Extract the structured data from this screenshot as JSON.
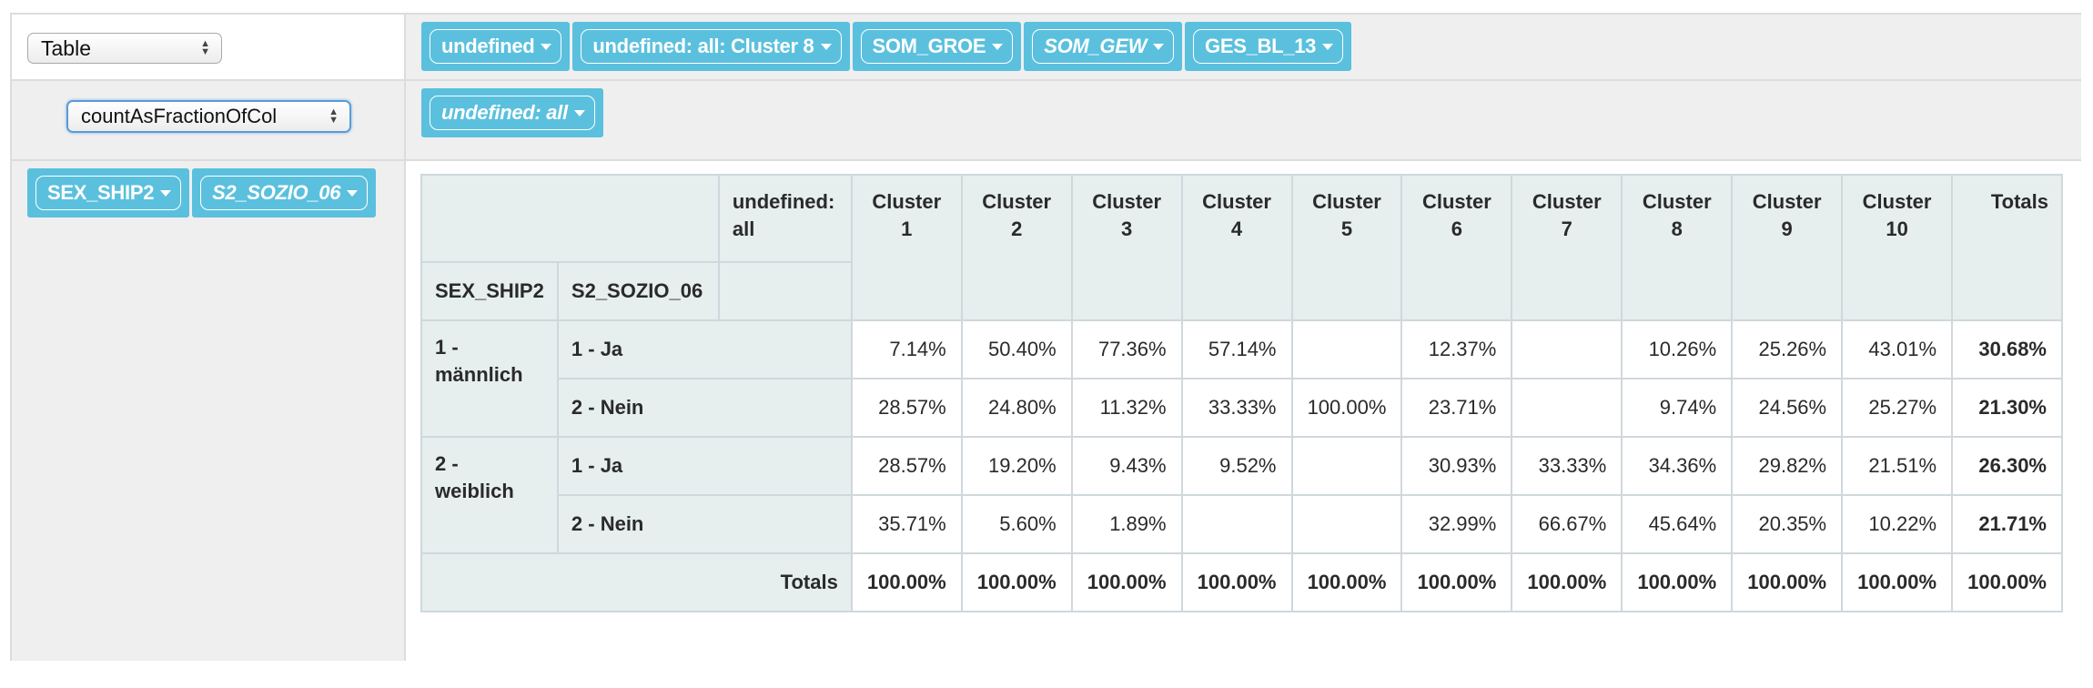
{
  "renderer": {
    "selected": "Table"
  },
  "aggregator": {
    "selected": "countAsFractionOfCol"
  },
  "unused_attributes": [
    {
      "label": "undefined",
      "italic": false
    },
    {
      "label": "undefined: all: Cluster 8",
      "italic": false
    },
    {
      "label": "SOM_GROE",
      "italic": false
    },
    {
      "label": "SOM_GEW",
      "italic": true
    },
    {
      "label": "GES_BL_13",
      "italic": false
    }
  ],
  "column_attributes": [
    {
      "label": "undefined: all",
      "italic": true
    }
  ],
  "row_attributes": [
    {
      "label": "SEX_SHIP2",
      "italic": false
    },
    {
      "label": "S2_SOZIO_06",
      "italic": true
    }
  ],
  "table": {
    "col_attr_header": "undefined: all",
    "row_attr_headers": [
      "SEX_SHIP2",
      "S2_SOZIO_06"
    ],
    "columns": [
      [
        "Cluster",
        "1"
      ],
      [
        "Cluster",
        "2"
      ],
      [
        "Cluster",
        "3"
      ],
      [
        "Cluster",
        "4"
      ],
      [
        "Cluster",
        "5"
      ],
      [
        "Cluster",
        "6"
      ],
      [
        "Cluster",
        "7"
      ],
      [
        "Cluster",
        "8"
      ],
      [
        "Cluster",
        "9"
      ],
      [
        "Cluster",
        "10"
      ]
    ],
    "totals_label": "Totals",
    "groups": [
      {
        "label": [
          "1 -",
          "männlich"
        ],
        "rows": [
          {
            "label": "1 - Ja",
            "values": [
              "7.14%",
              "50.40%",
              "77.36%",
              "57.14%",
              "",
              "12.37%",
              "",
              "10.26%",
              "25.26%",
              "43.01%"
            ],
            "total": "30.68%"
          },
          {
            "label": "2 - Nein",
            "values": [
              "28.57%",
              "24.80%",
              "11.32%",
              "33.33%",
              "100.00%",
              "23.71%",
              "",
              "9.74%",
              "24.56%",
              "25.27%"
            ],
            "total": "21.30%"
          }
        ]
      },
      {
        "label": [
          "2 -",
          "weiblich"
        ],
        "rows": [
          {
            "label": "1 - Ja",
            "values": [
              "28.57%",
              "19.20%",
              "9.43%",
              "9.52%",
              "",
              "30.93%",
              "33.33%",
              "34.36%",
              "29.82%",
              "21.51%"
            ],
            "total": "26.30%"
          },
          {
            "label": "2 - Nein",
            "values": [
              "35.71%",
              "5.60%",
              "1.89%",
              "",
              "",
              "32.99%",
              "66.67%",
              "45.64%",
              "20.35%",
              "10.22%"
            ],
            "total": "21.71%"
          }
        ]
      }
    ],
    "column_totals": [
      "100.00%",
      "100.00%",
      "100.00%",
      "100.00%",
      "100.00%",
      "100.00%",
      "100.00%",
      "100.00%",
      "100.00%",
      "100.00%"
    ],
    "grand_total": "100.00%"
  }
}
